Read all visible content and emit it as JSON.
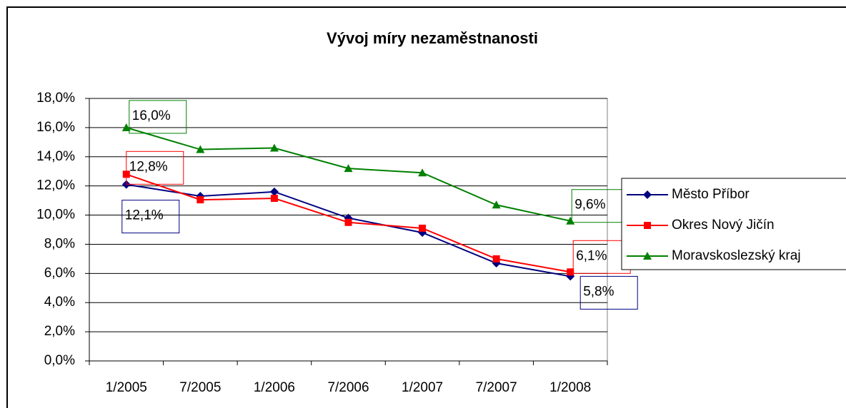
{
  "chart_data": {
    "type": "line",
    "title": "Vývoj míry nezaměstnanosti",
    "categories": [
      "1/2005",
      "7/2005",
      "1/2006",
      "7/2006",
      "1/2007",
      "7/2007",
      "1/2008"
    ],
    "series": [
      {
        "name": "Město Příbor",
        "color": "#000080",
        "marker": "diamond",
        "values": [
          12.1,
          11.3,
          11.6,
          9.8,
          8.8,
          6.7,
          5.8
        ],
        "value_labels": [
          "12,1%",
          null,
          null,
          null,
          null,
          null,
          "5,8%"
        ]
      },
      {
        "name": "Okres Nový Jičín",
        "color": "#ff0000",
        "marker": "square",
        "values": [
          12.8,
          11.05,
          11.15,
          9.5,
          9.1,
          7.0,
          6.1
        ],
        "value_labels": [
          "12,8%",
          null,
          null,
          null,
          null,
          null,
          "6,1%"
        ]
      },
      {
        "name": "Moravskoslezský kraj",
        "color": "#008000",
        "marker": "triangle",
        "values": [
          16.0,
          14.5,
          14.6,
          13.2,
          12.9,
          10.7,
          9.6
        ],
        "value_labels": [
          "16,0%",
          null,
          null,
          null,
          null,
          null,
          "9,6%"
        ]
      }
    ],
    "ylim": [
      0,
      18
    ],
    "yticks": [
      {
        "value": 0,
        "label": "0,0%"
      },
      {
        "value": 2,
        "label": "2,0%"
      },
      {
        "value": 4,
        "label": "4,0%"
      },
      {
        "value": 6,
        "label": "6,0%"
      },
      {
        "value": 8,
        "label": "8,0%"
      },
      {
        "value": 10,
        "label": "10,0%"
      },
      {
        "value": 12,
        "label": "12,0%"
      },
      {
        "value": 14,
        "label": "14,0%"
      },
      {
        "value": 16,
        "label": "16,0%"
      },
      {
        "value": 18,
        "label": "18,0%"
      }
    ],
    "grid": true,
    "legend": "right"
  }
}
